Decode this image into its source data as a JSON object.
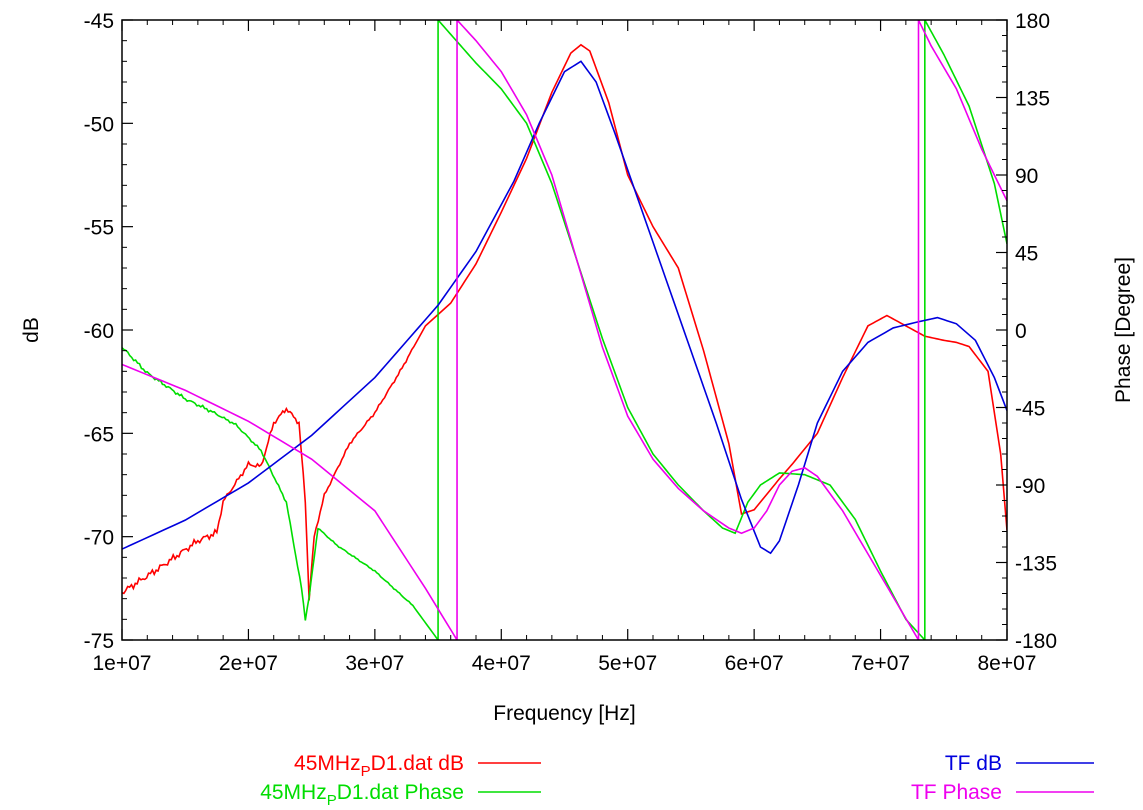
{
  "chart_data": {
    "type": "line",
    "xlabel": "Frequency [Hz]",
    "ylabel_left": "dB",
    "ylabel_right": "Phase [Degree]",
    "xlim": [
      10000000,
      80000000
    ],
    "ylim_left": [
      -75,
      -45
    ],
    "ylim_right": [
      -180,
      180
    ],
    "x_ticks": [
      10000000,
      20000000,
      30000000,
      40000000,
      50000000,
      60000000,
      70000000,
      80000000
    ],
    "x_tick_labels": [
      "1e+07",
      "2e+07",
      "3e+07",
      "4e+07",
      "5e+07",
      "6e+07",
      "7e+07",
      "8e+07"
    ],
    "y_left_ticks": [
      -75,
      -70,
      -65,
      -60,
      -55,
      -50,
      -45
    ],
    "y_left_tick_labels": [
      "-75",
      "-70",
      "-65",
      "-60",
      "-55",
      "-50",
      "-45"
    ],
    "y_right_ticks": [
      -180,
      -135,
      -90,
      -45,
      0,
      45,
      90,
      135,
      180
    ],
    "y_right_tick_labels": [
      "-180",
      "-135",
      "-90",
      "-45",
      "0",
      "45",
      "90",
      "135",
      "180"
    ],
    "grid": false,
    "legend_position": "bottom",
    "series": [
      {
        "name_parts": [
          "45MHz",
          "P",
          "D1.dat dB"
        ],
        "axis": "left",
        "color": "#ff0000",
        "x": [
          10000000,
          13000000,
          16000000,
          17500000,
          18000000,
          20000000,
          21000000,
          22000000,
          23000000,
          24000000,
          24500000,
          24800000,
          25200000,
          26000000,
          28000000,
          30000000,
          32000000,
          34000000,
          36000000,
          38000000,
          40000000,
          42000000,
          44000000,
          45500000,
          46300000,
          47000000,
          48500000,
          50000000,
          52000000,
          54000000,
          56000000,
          58000000,
          59000000,
          60000000,
          62000000,
          63000000,
          65000000,
          67000000,
          69000000,
          70500000,
          72000000,
          73500000,
          75000000,
          76000000,
          77000000,
          78500000,
          79500000,
          80000000
        ],
        "y": [
          -72.7,
          -71.5,
          -70.2,
          -69.8,
          -68.3,
          -66.5,
          -66.6,
          -64.5,
          -63.8,
          -64.5,
          -68.3,
          -73.0,
          -70.0,
          -68.0,
          -65.5,
          -64.0,
          -62.0,
          -59.8,
          -58.7,
          -56.8,
          -54.3,
          -51.7,
          -48.5,
          -46.6,
          -46.2,
          -46.5,
          -49.0,
          -52.5,
          -55.0,
          -57.0,
          -61.0,
          -65.5,
          -68.9,
          -68.7,
          -67.2,
          -66.5,
          -65.0,
          -62.3,
          -59.8,
          -59.3,
          -59.8,
          -60.3,
          -60.5,
          -60.6,
          -60.8,
          -62.0,
          -66.0,
          -69.7
        ]
      },
      {
        "name_parts": [
          "45MHz",
          "P",
          "D1.dat Phase"
        ],
        "axis": "right",
        "color": "#00dd00",
        "x": [
          10000000,
          12000000,
          15000000,
          17000000,
          19000000,
          21000000,
          23000000,
          24200000,
          24500000,
          24800000,
          25500000,
          27000000,
          30000000,
          33000000,
          35000000,
          35000001,
          38000000,
          40000000,
          42000000,
          44000000,
          46000000,
          48000000,
          50000000,
          52000000,
          54000000,
          56000000,
          57500000,
          58500000,
          59500000,
          60500000,
          62000000,
          64000000,
          66000000,
          68000000,
          70000000,
          72000000,
          73500000,
          73500001,
          75000000,
          77000000,
          79000000,
          80000000
        ],
        "y": [
          -10,
          -25,
          -40,
          -47,
          -55,
          -70,
          -100,
          -150,
          -168,
          -155,
          -115,
          -125,
          -140,
          -160,
          -180,
          180,
          155,
          140,
          120,
          85,
          40,
          -5,
          -45,
          -72,
          -90,
          -105,
          -115,
          -118,
          -100,
          -90,
          -83,
          -84,
          -90,
          -110,
          -140,
          -168,
          -180,
          180,
          160,
          130,
          85,
          50
        ]
      },
      {
        "name_parts": [
          "TF dB"
        ],
        "axis": "left",
        "color": "#0000dd",
        "x": [
          10000000,
          15000000,
          20000000,
          25000000,
          30000000,
          35000000,
          38000000,
          41000000,
          43000000,
          45000000,
          46300000,
          47500000,
          49000000,
          51000000,
          53000000,
          55000000,
          57000000,
          59000000,
          60500000,
          61300000,
          62000000,
          63500000,
          65000000,
          67000000,
          69000000,
          71000000,
          73000000,
          74500000,
          76000000,
          77500000,
          79000000,
          80000000
        ],
        "y": [
          -70.6,
          -69.2,
          -67.4,
          -65.1,
          -62.3,
          -58.8,
          -56.2,
          -52.8,
          -50.0,
          -47.5,
          -47.0,
          -48.0,
          -50.5,
          -54.0,
          -57.5,
          -61.0,
          -64.5,
          -68.2,
          -70.5,
          -70.8,
          -70.2,
          -67.5,
          -64.5,
          -62.0,
          -60.6,
          -59.9,
          -59.6,
          -59.4,
          -59.7,
          -60.5,
          -62.3,
          -63.9
        ]
      },
      {
        "name_parts": [
          "TF Phase"
        ],
        "axis": "right",
        "color": "#ee00ee",
        "x": [
          10000000,
          15000000,
          20000000,
          25000000,
          30000000,
          34000000,
          36500000,
          36500001,
          38000000,
          40000000,
          42000000,
          44000000,
          46000000,
          48000000,
          50000000,
          52000000,
          54000000,
          56000000,
          58000000,
          59000000,
          60000000,
          61000000,
          62000000,
          63000000,
          64000000,
          65000000,
          67000000,
          69000000,
          71000000,
          73000000,
          73000001,
          74000000,
          76000000,
          78000000,
          80000000
        ],
        "y": [
          -20,
          -35,
          -53,
          -75,
          -105,
          -150,
          -180,
          180,
          168,
          150,
          125,
          90,
          40,
          -10,
          -50,
          -75,
          -92,
          -105,
          -115,
          -118,
          -115,
          -105,
          -90,
          -82,
          -80,
          -85,
          -105,
          -130,
          -155,
          -180,
          180,
          165,
          140,
          105,
          75
        ]
      }
    ]
  }
}
